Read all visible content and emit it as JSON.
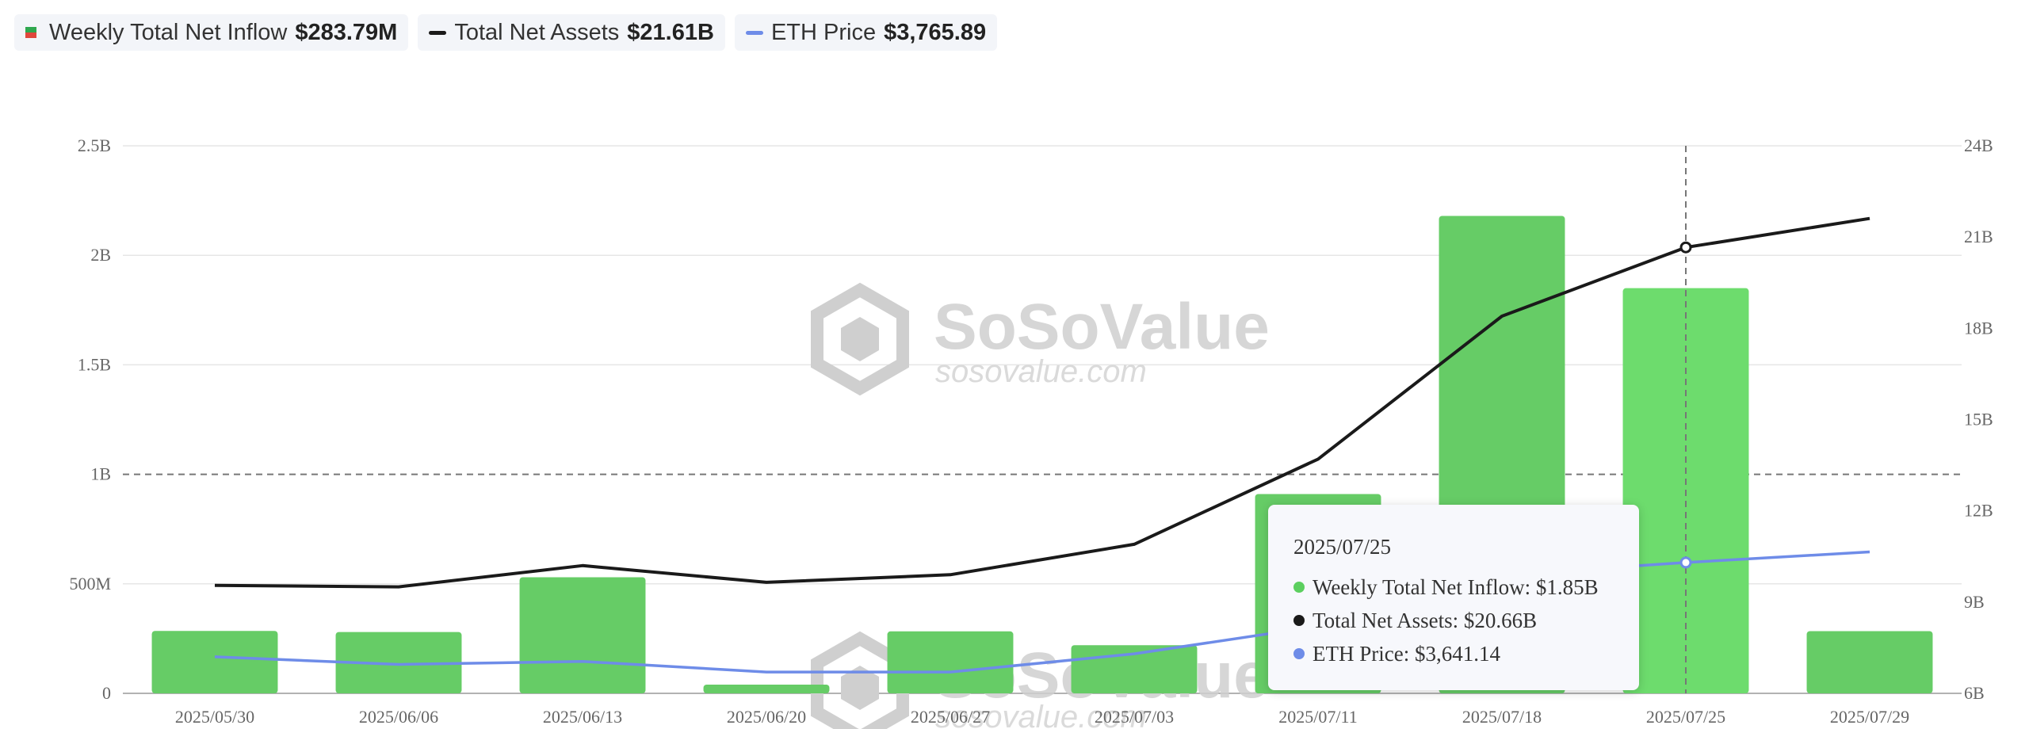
{
  "legend": [
    {
      "label": "Weekly Total Net Inflow",
      "value": "$283.79M",
      "color": "#2fa84f"
    },
    {
      "label": "Total Net Assets",
      "value": "$21.61B",
      "color": "#1a1a1a"
    },
    {
      "label": "ETH Price",
      "value": "$3,765.89",
      "color": "#6e8ce8"
    }
  ],
  "watermark": {
    "brand": "SoSoValue",
    "url": "sosovalue.com"
  },
  "tooltip": {
    "date": "2025/07/25",
    "rows": [
      {
        "label": "Weekly Total Net Inflow:",
        "value": "$1.85B",
        "color": "#5ccf5f"
      },
      {
        "label": "Total Net Assets:",
        "value": "$20.66B",
        "color": "#1a1a1a"
      },
      {
        "label": "ETH Price:",
        "value": "$3,641.14",
        "color": "#6e8ce8"
      }
    ]
  },
  "chart_data": {
    "type": "bar",
    "categories": [
      "2025/05/30",
      "2025/06/06",
      "2025/06/13",
      "2025/06/20",
      "2025/06/27",
      "2025/07/03",
      "2025/07/11",
      "2025/07/18",
      "2025/07/25",
      "2025/07/29"
    ],
    "series": [
      {
        "name": "Weekly Total Net Inflow",
        "type": "bar",
        "axis": "left",
        "color": "#66cc66",
        "values": [
          0.285,
          0.28,
          0.53,
          0.04,
          0.283,
          0.22,
          0.91,
          2.18,
          1.85,
          0.284
        ]
      },
      {
        "name": "Total Net Assets",
        "type": "line",
        "axis": "right",
        "color": "#1a1a1a",
        "values": [
          9.55,
          9.5,
          10.2,
          9.65,
          9.9,
          10.9,
          13.7,
          18.4,
          20.66,
          21.61
        ]
      },
      {
        "name": "ETH Price",
        "type": "line",
        "axis": "right",
        "color": "#6e8ce8",
        "values": [
          7.2,
          6.95,
          7.05,
          6.7,
          6.7,
          7.3,
          8.2,
          9.9,
          10.3,
          10.65
        ]
      }
    ],
    "y_left": {
      "ticks": [
        0,
        0.5,
        1,
        1.5,
        2,
        2.5
      ],
      "tick_labels": [
        "0",
        "500M",
        "1B",
        "1.5B",
        "2B",
        "2.5B"
      ],
      "ylim": [
        0,
        2.5
      ]
    },
    "y_right": {
      "ticks": [
        6,
        9,
        12,
        15,
        18,
        21,
        24
      ],
      "tick_labels": [
        "6B",
        "9B",
        "12B",
        "15B",
        "18B",
        "21B",
        "24B"
      ],
      "ylim": [
        6,
        24
      ]
    },
    "highlight_category": "2025/07/25",
    "reference_line": 1.0,
    "grid": true
  }
}
